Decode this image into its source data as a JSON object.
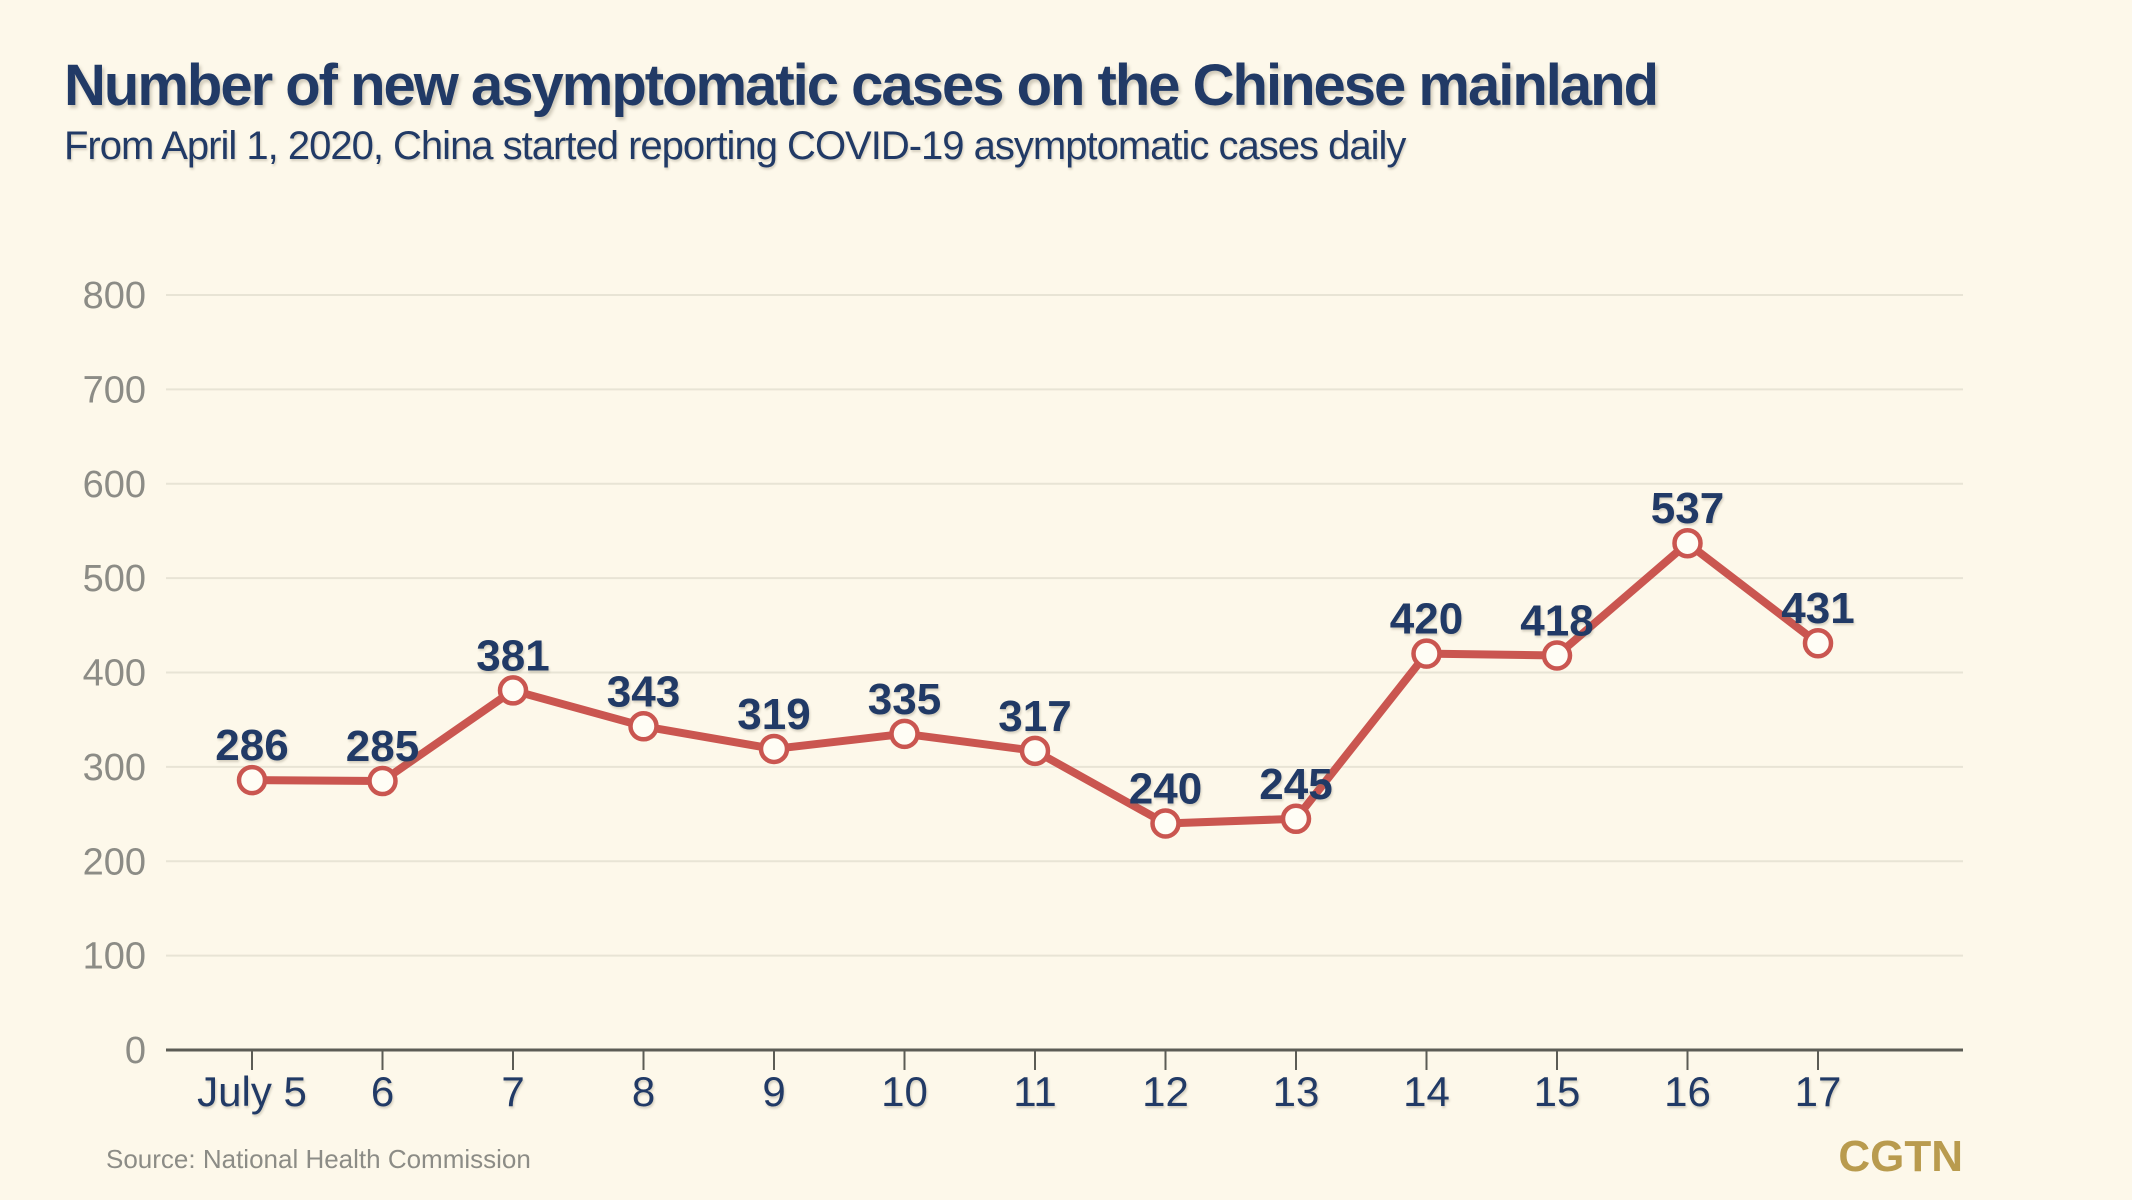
{
  "colors": {
    "background": "#fdf8ea",
    "navy": "#213a66",
    "line_red": "#ca5650",
    "grid": "#e8e4d5",
    "axis": "#5c5c55",
    "muted_gray": "#8c8c86",
    "logo_gold": "#b99b4e",
    "marker_fill": "#fffdf5"
  },
  "header": {
    "title": "Number of new asymptomatic cases on the Chinese mainland",
    "subtitle": "From April 1, 2020, China started reporting COVID-19 asymptomatic cases daily"
  },
  "chart_data": {
    "type": "line",
    "title": "Number of new asymptomatic cases on the Chinese mainland",
    "categories": [
      "July 5",
      "6",
      "7",
      "8",
      "9",
      "10",
      "11",
      "12",
      "13",
      "14",
      "15",
      "16",
      "17"
    ],
    "values": [
      286,
      285,
      381,
      343,
      319,
      335,
      317,
      240,
      245,
      420,
      418,
      537,
      431
    ],
    "xlabel": "",
    "ylabel": "",
    "ylim": [
      0,
      800
    ],
    "ytick_interval": 100,
    "grid": true,
    "legend": "none",
    "line_color": "#ca5650",
    "marker": "open-circle",
    "data_labels": true
  },
  "footer": {
    "source": "Source: National Health Commission",
    "logo": "CGTN"
  }
}
